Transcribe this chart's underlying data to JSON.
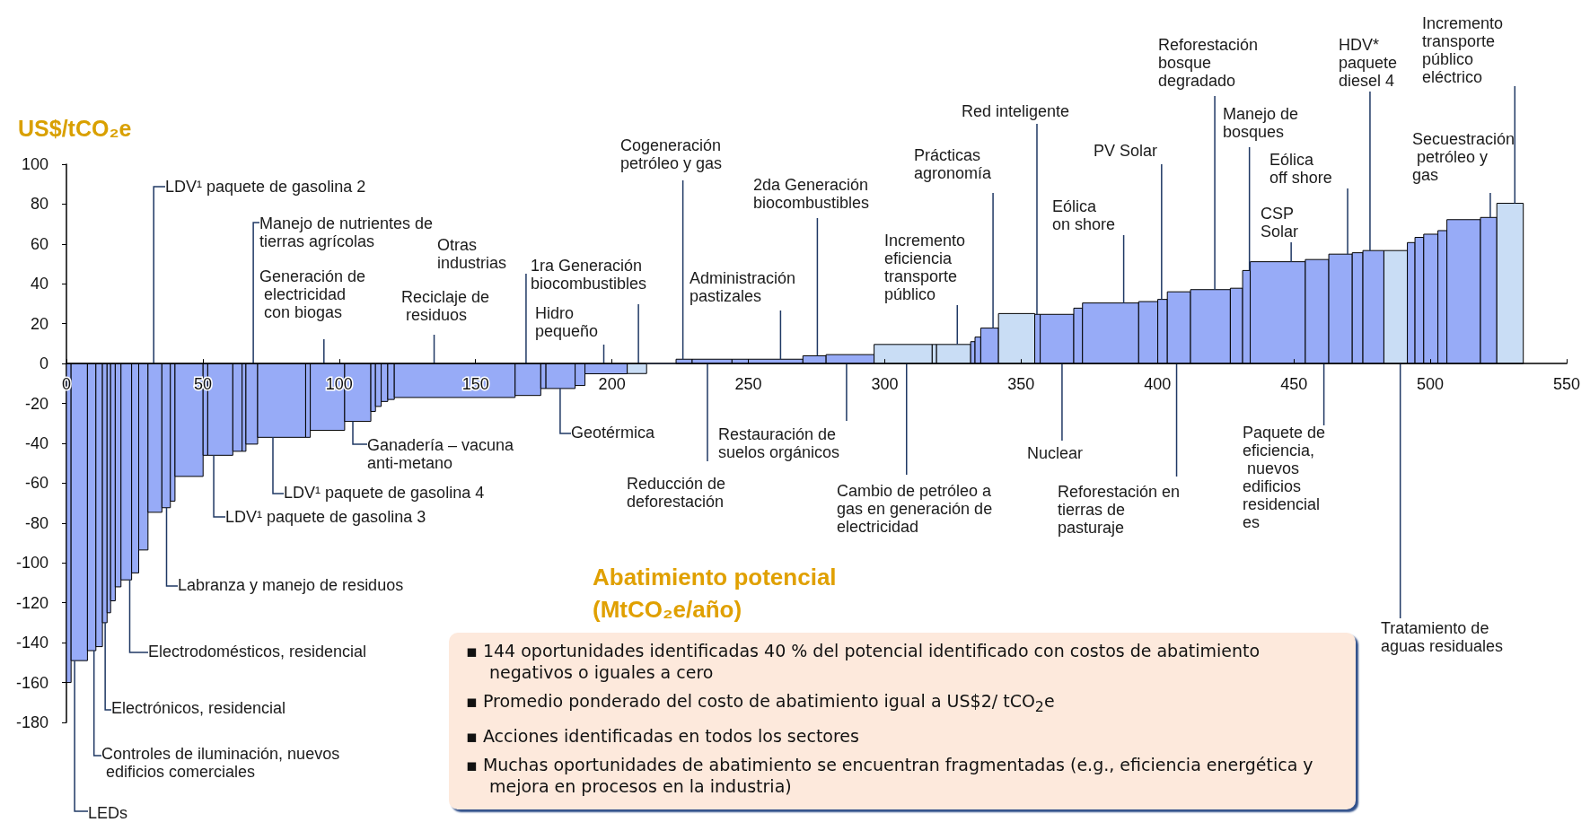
{
  "chart_data": {
    "type": "histogram",
    "xlabel": "Abatimiento potencial (MtCO₂e/año)",
    "ylabel": "US$/tCO₂e",
    "bins": [
      0,
      1.7,
      7.7,
      10.8,
      13.2,
      14.9,
      16.2,
      17.9,
      20,
      23.9,
      26.5,
      29.9,
      35,
      38.1,
      39.8,
      50.1,
      51.8,
      61,
      64.4,
      65.8,
      70.1,
      87.7,
      89.4,
      102,
      111.6,
      113.3,
      115.4,
      117.8,
      120.2,
      164.5,
      173.9,
      175.8,
      186.5,
      190.1,
      205.6,
      212.7,
      223.5,
      229.4,
      244,
      270,
      278.5,
      296.1,
      317.4,
      319,
      331.5,
      333.1,
      335.2,
      341.7,
      355,
      357,
      369.3,
      372.5,
      393.1,
      400.1,
      403.6,
      412.1,
      426.7,
      431.2,
      434,
      454.2,
      462.8,
      471.4,
      475.3,
      483,
      491.6,
      494.4,
      497.6,
      502.8,
      506.1,
      518.4,
      524.4,
      534.1
    ],
    "values": [
      -160,
      -149,
      -144,
      -142,
      -130,
      -125,
      -119,
      -112,
      -108.5,
      -105,
      -93.5,
      -74.6,
      -72.3,
      -69,
      -56.6,
      -46,
      -46,
      -44,
      -44,
      -40.4,
      -37,
      -37,
      -33.5,
      -29,
      -24,
      -21.5,
      -19,
      -18,
      -17,
      -16,
      -12.5,
      -12.5,
      -11,
      -5.1,
      -5,
      0,
      2.2,
      2.2,
      2.2,
      3.9,
      4.5,
      9.6,
      9.6,
      9.6,
      11,
      13.3,
      17.8,
      25.1,
      24.7,
      24.7,
      27.8,
      30.4,
      31.1,
      32.2,
      36,
      37.1,
      37.8,
      46.7,
      51.1,
      52.2,
      54.9,
      55.6,
      56.7,
      56.7,
      60.7,
      63.3,
      64.9,
      66.7,
      72.2,
      73.3,
      80.4
    ],
    "colors": [
      "#97abf7",
      "#97abf7",
      "#97abf7",
      "#97abf7",
      "#97abf7",
      "#97abf7",
      "#97abf7",
      "#97abf7",
      "#97abf7",
      "#97abf7",
      "#97abf7",
      "#97abf7",
      "#97abf7",
      "#97abf7",
      "#97abf7",
      "#97abf7",
      "#97abf7",
      "#97abf7",
      "#97abf7",
      "#97abf7",
      "#97abf7",
      "#97abf7",
      "#97abf7",
      "#97abf7",
      "#97abf7",
      "#97abf7",
      "#97abf7",
      "#97abf7",
      "#97abf7",
      "#97abf7",
      "#97abf7",
      "#97abf7",
      "#97abf7",
      "#97abf7",
      "#c9ddf5",
      "#97abf7",
      "#97abf7",
      "#97abf7",
      "#97abf7",
      "#97abf7",
      "#97abf7",
      "#c9ddf5",
      "#c9ddf5",
      "#c9ddf5",
      "#97abf7",
      "#97abf7",
      "#97abf7",
      "#c9ddf5",
      "#97abf7",
      "#97abf7",
      "#97abf7",
      "#97abf7",
      "#97abf7",
      "#97abf7",
      "#97abf7",
      "#97abf7",
      "#97abf7",
      "#97abf7",
      "#97abf7",
      "#97abf7",
      "#97abf7",
      "#97abf7",
      "#97abf7",
      "#c9ddf5",
      "#97abf7",
      "#97abf7",
      "#97abf7",
      "#97abf7",
      "#97abf7",
      "#97abf7",
      "#c9ddf5"
    ],
    "xlim": [
      0,
      550
    ],
    "xticks": [
      0,
      50,
      100,
      150,
      200,
      250,
      300,
      350,
      400,
      450,
      500,
      550
    ],
    "ylim": [
      -180,
      100
    ],
    "yticks": [
      -180,
      -160,
      -140,
      -120,
      -100,
      -80,
      -60,
      -40,
      -20,
      0,
      20,
      40,
      60,
      80,
      100
    ],
    "annotations": [
      {
        "text": "LDV¹ paquete de gasolina 2",
        "x": 32,
        "y": 0
      },
      {
        "text": "Manejo de nutrientes de tierras agrícolas",
        "x": 68.5,
        "y": 0
      },
      {
        "text": "Generación de electricidad con biogas",
        "x": 94.4,
        "y": 0
      },
      {
        "text": "Reciclaje de residuos",
        "x": 134.8,
        "y": 0
      },
      {
        "text": "Otras industrias",
        "x": 168.5,
        "y": 0
      },
      {
        "text": "1ra Generación biocombustibles",
        "x": 209.7,
        "y": 0
      },
      {
        "text": "Hidro pequeño",
        "x": 197,
        "y": 0
      },
      {
        "text": "Cogeneración petróleo y gas",
        "x": 226,
        "y": 2.2
      },
      {
        "text": "Administración pastizales",
        "x": 261.8,
        "y": 2.2
      },
      {
        "text": "2da Generación biocombustibles",
        "x": 275.3,
        "y": 3.9
      },
      {
        "text": "Incremento eficiencia transporte público",
        "x": 326.6,
        "y": 9.6
      },
      {
        "text": "Prácticas agronomía",
        "x": 339.7,
        "y": 17.8
      },
      {
        "text": "Red inteligente",
        "x": 355.8,
        "y": 24.7
      },
      {
        "text": "Eólica on shore",
        "x": 387.6,
        "y": 30.4
      },
      {
        "text": "PV Solar",
        "x": 401.5,
        "y": 32.2
      },
      {
        "text": "Reforestación bosque degradado",
        "x": 421,
        "y": 37.1
      },
      {
        "text": "Manejo de bosques",
        "x": 433.7,
        "y": 46.7
      },
      {
        "text": "Eólica off shore",
        "x": 469.7,
        "y": 54.9
      },
      {
        "text": "CSP Solar",
        "x": 449,
        "y": 51.1
      },
      {
        "text": "HDV* paquete diesel 4",
        "x": 477.9,
        "y": 56.7
      },
      {
        "text": "Incremento transporte público eléctrico",
        "x": 531,
        "y": 80.4
      },
      {
        "text": "Secuestración petróleo y gas",
        "x": 522,
        "y": 73.3
      },
      {
        "text": "LEDs",
        "x": 3,
        "y": -149
      },
      {
        "text": "Controles de iluminación, nuevos edificios comerciales",
        "x": 10.1,
        "y": -144
      },
      {
        "text": "Electrónicos, residencial",
        "x": 14.2,
        "y": -130
      },
      {
        "text": "Electrodomésticos, residencial",
        "x": 23.2,
        "y": -108.5
      },
      {
        "text": "Labranza y manejo de residuos",
        "x": 36.7,
        "y": -72.3
      },
      {
        "text": "LDV¹ paquete de gasolina 3",
        "x": 54,
        "y": -46
      },
      {
        "text": "LDV¹ paquete de gasolina 4",
        "x": 75.7,
        "y": -37
      },
      {
        "text": "Ganadería – vacuna anti-metano",
        "x": 105,
        "y": -29
      },
      {
        "text": "Geotérmica",
        "x": 181,
        "y": -12.5
      },
      {
        "text": "Reducción de deforestación",
        "x": 235,
        "y": 0
      },
      {
        "text": "Restauración de suelos orgánicos",
        "x": 286,
        "y": 0
      },
      {
        "text": "Cambio de petróleo a gas en generación de electricidad",
        "x": 308,
        "y": 0
      },
      {
        "text": "Nuclear",
        "x": 365,
        "y": 0
      },
      {
        "text": "Reforestación en tierras de pasturaje",
        "x": 407,
        "y": 0
      },
      {
        "text": "Paquete de eficiencia, nuevos edificios residenciales",
        "x": 461,
        "y": 0
      },
      {
        "text": "Tratamiento de aguas residuales",
        "x": 489,
        "y": 0
      },
      "▪ 144 oportunidades identificadas 40 % del potencial identificado con costos de abatimiento negativos o iguales a cero",
      "▪ Promedio ponderado del costo de abatimiento igual a US$2/ tCO$_{2}$e",
      "▪ Acciones identificadas en todos los sectores",
      "▪ Muchas oportunidades de abatimiento se encuentran fragmentadas (e.g., eficiencia energética y mejora en procesos en la industria)"
    ]
  }
}
